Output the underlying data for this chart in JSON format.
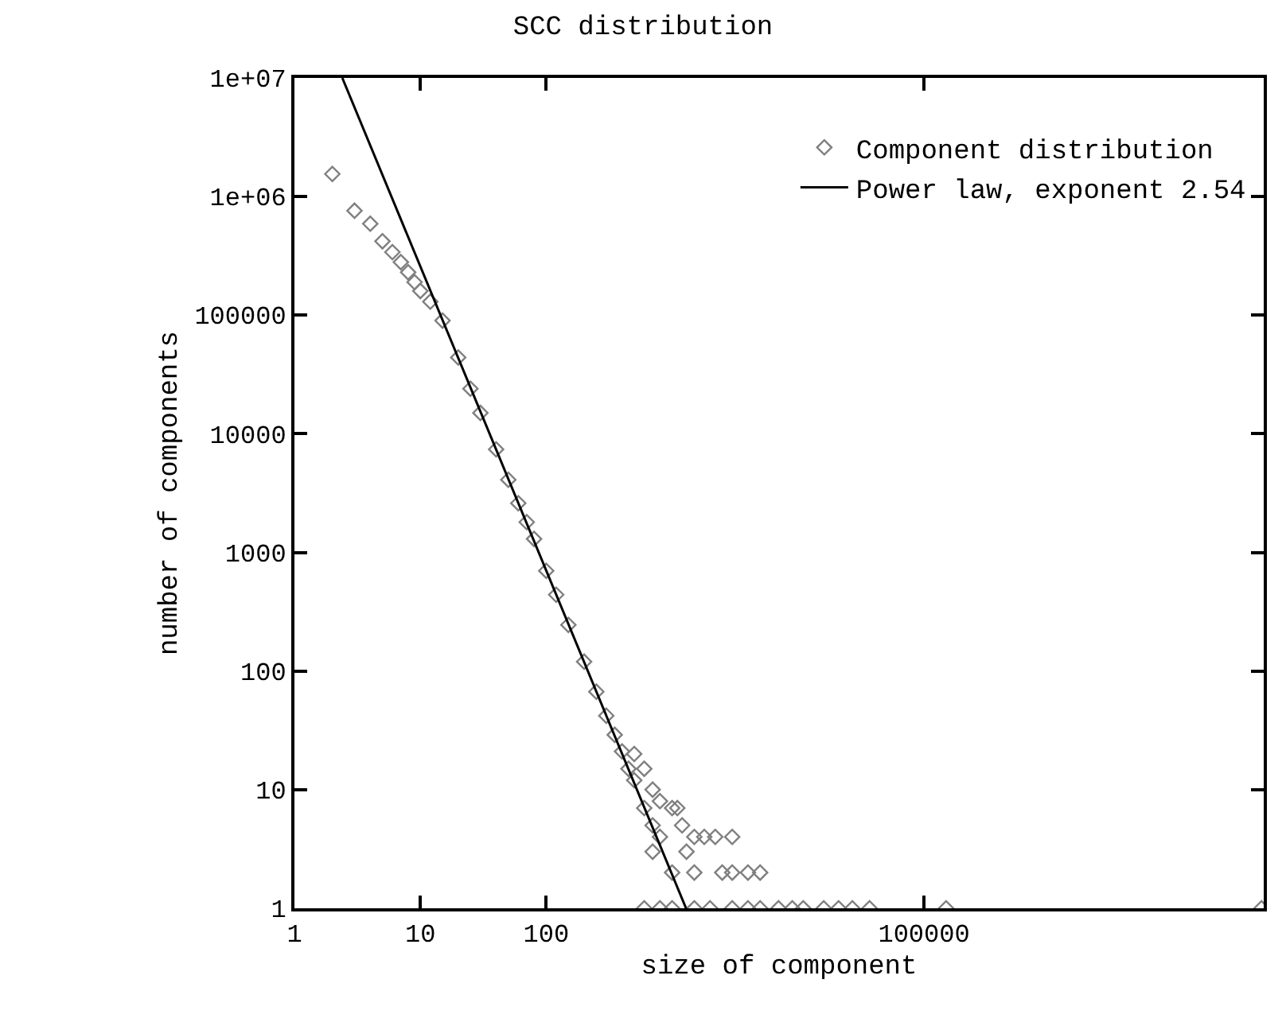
{
  "chart_data": {
    "type": "scatter",
    "title": "SCC distribution",
    "xlabel": "size of component",
    "ylabel": "number of components",
    "log": "xy",
    "legend": "top right",
    "marker": "diamond",
    "xlim": [
      1,
      50000000
    ],
    "ylim": [
      1,
      10000000
    ],
    "xticks": [
      1,
      10,
      100,
      100000
    ],
    "yticks": [
      1,
      10,
      100,
      1000,
      10000,
      100000,
      {
        "value": 1000000,
        "label": "1e+06"
      },
      {
        "value": 10000000,
        "label": "1e+07"
      }
    ],
    "series": [
      {
        "name": "Component distribution",
        "color": "#808080",
        "x": [
          2,
          3,
          4,
          5,
          6,
          7,
          8,
          9,
          10,
          12,
          15,
          20,
          25,
          30,
          40,
          50,
          60,
          70,
          80,
          100,
          120,
          150,
          200,
          250,
          300,
          350,
          400,
          450,
          500,
          600,
          700,
          800,
          500,
          600,
          700,
          800,
          1000,
          1200,
          1100,
          1500,
          1800,
          2200,
          3000,
          1300,
          700,
          1000,
          1500,
          2500,
          3000,
          4000,
          5000,
          600,
          800,
          1000,
          1500,
          2000,
          3000,
          4000,
          5000,
          7000,
          9000,
          11000,
          16000,
          21000,
          27000,
          37000,
          150000,
          48000000
        ],
        "values": [
          1550000,
          760000,
          590000,
          420000,
          340000,
          280000,
          230000,
          190000,
          160000,
          130000,
          90000,
          44000,
          24000,
          15000,
          7400,
          4100,
          2600,
          1800,
          1300,
          700,
          440,
          245,
          120,
          67,
          42,
          29,
          21,
          15,
          12,
          7,
          5,
          4,
          20,
          15,
          10,
          8,
          7,
          5,
          7,
          4,
          4,
          4,
          4,
          3,
          3,
          2,
          2,
          2,
          2,
          2,
          2,
          1,
          1,
          1,
          1,
          1,
          1,
          1,
          1,
          1,
          1,
          1,
          1,
          1,
          1,
          1,
          1,
          1
        ]
      },
      {
        "name": "Power law, exponent 2.54",
        "type": "line",
        "color": "#000000",
        "marker": "none",
        "line_style": "solid",
        "x": [
          2.4,
          1290
        ],
        "values": [
          10000000,
          1
        ]
      }
    ]
  }
}
